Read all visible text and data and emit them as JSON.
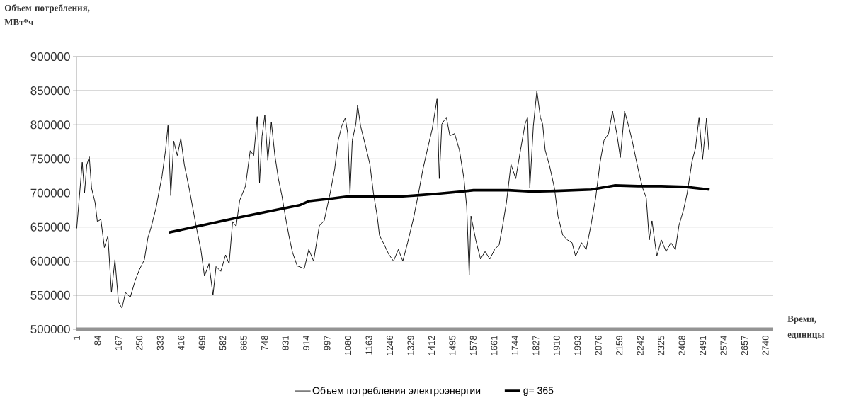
{
  "chart_data": {
    "type": "line",
    "ylabel": "Объем потребления, МВт*ч",
    "xlabel": "Время, единицы",
    "xlim": [
      0,
      2771
    ],
    "xticks": [
      1,
      84,
      167,
      250,
      333,
      416,
      499,
      582,
      665,
      748,
      831,
      914,
      997,
      1080,
      1163,
      1246,
      1329,
      1412,
      1495,
      1578,
      1661,
      1744,
      1827,
      1910,
      1993,
      2076,
      2159,
      2242,
      2325,
      2408,
      2491,
      2574,
      2657,
      2740
    ],
    "ylim": [
      500000,
      900000
    ],
    "yticks": [
      500000,
      550000,
      600000,
      650000,
      700000,
      750000,
      800000,
      850000,
      900000
    ],
    "grid": "y",
    "legend": "bottom",
    "marker": "none",
    "line_style": "solid",
    "series": [
      {
        "name": "Объем потребления электроэнергии",
        "color": "#000000",
        "x": [
          1,
          23,
          32,
          41,
          51,
          60,
          74,
          83,
          97,
          111,
          125,
          139,
          153,
          167,
          181,
          195,
          214,
          233,
          251,
          270,
          284,
          298,
          317,
          331,
          340,
          354,
          364,
          375,
          387,
          401,
          415,
          429,
          448,
          462,
          476,
          495,
          509,
          527,
          543,
          555,
          574,
          593,
          607,
          621,
          635,
          649,
          672,
          691,
          705,
          719,
          728,
          738,
          749,
          761,
          775,
          789,
          803,
          817,
          831,
          845,
          859,
          878,
          906,
          924,
          943,
          966,
          985,
          1009,
          1027,
          1041,
          1055,
          1069,
          1079,
          1088,
          1097,
          1111,
          1118,
          1130,
          1149,
          1167,
          1181,
          1196,
          1205,
          1224,
          1242,
          1261,
          1280,
          1298,
          1317,
          1340,
          1359,
          1378,
          1397,
          1415,
          1434,
          1443,
          1453,
          1471,
          1485,
          1504,
          1523,
          1541,
          1552,
          1562,
          1569,
          1588,
          1607,
          1625,
          1644,
          1663,
          1681,
          1695,
          1710,
          1728,
          1747,
          1766,
          1784,
          1794,
          1803,
          1817,
          1831,
          1845,
          1854,
          1864,
          1882,
          1901,
          1915,
          1934,
          1953,
          1971,
          1985,
          2009,
          2027,
          2046,
          2065,
          2083,
          2098,
          2116,
          2132,
          2149,
          2163,
          2180,
          2196,
          2210,
          2224,
          2238,
          2252,
          2266,
          2278,
          2289,
          2308,
          2326,
          2345,
          2364,
          2382,
          2396,
          2415,
          2429,
          2448,
          2462,
          2476,
          2490,
          2506,
          2515
        ],
        "values": [
          648000,
          745000,
          700000,
          741000,
          753000,
          707000,
          686000,
          658000,
          661000,
          620000,
          637000,
          554000,
          602000,
          540000,
          531000,
          554000,
          547000,
          571000,
          588000,
          602000,
          634000,
          651000,
          679000,
          707000,
          724000,
          762000,
          799000,
          696000,
          776000,
          755000,
          780000,
          741000,
          707000,
          679000,
          651000,
          616000,
          578000,
          596000,
          550000,
          592000,
          585000,
          609000,
          596000,
          658000,
          651000,
          689000,
          710000,
          762000,
          755000,
          812000,
          715000,
          783000,
          814000,
          748000,
          804000,
          755000,
          721000,
          696000,
          665000,
          637000,
          613000,
          593000,
          589000,
          617000,
          600000,
          652000,
          659000,
          700000,
          735000,
          777000,
          798000,
          810000,
          787000,
          699000,
          777000,
          801000,
          829000,
          798000,
          770000,
          742000,
          700000,
          666000,
          638000,
          624000,
          610000,
          600000,
          617000,
          600000,
          627000,
          662000,
          697000,
          735000,
          766000,
          794000,
          838000,
          721000,
          801000,
          811000,
          784000,
          787000,
          763000,
          721000,
          680000,
          579000,
          666000,
          631000,
          603000,
          614000,
          603000,
          617000,
          624000,
          652000,
          686000,
          742000,
          721000,
          763000,
          801000,
          811000,
          707000,
          798000,
          850000,
          811000,
          801000,
          763000,
          739000,
          707000,
          666000,
          638000,
          631000,
          627000,
          607000,
          627000,
          617000,
          652000,
          693000,
          746000,
          777000,
          787000,
          820000,
          787000,
          752000,
          820000,
          798000,
          777000,
          752000,
          728000,
          707000,
          693000,
          631000,
          659000,
          607000,
          631000,
          614000,
          627000,
          617000,
          652000,
          676000,
          700000,
          746000,
          766000,
          811000,
          749000,
          810000,
          763000
        ]
      },
      {
        "name": "g= 365",
        "color": "#000000",
        "x": [
          368,
          644,
          887,
          924,
          1018,
          1083,
          1205,
          1298,
          1373,
          1439,
          1532,
          1579,
          1719,
          1812,
          1906,
          2046,
          2140,
          2233,
          2326,
          2420,
          2518
        ],
        "values": [
          642000,
          664000,
          682000,
          688000,
          692000,
          695000,
          695000,
          695000,
          697000,
          699000,
          702000,
          704000,
          704000,
          702000,
          703000,
          705000,
          711000,
          710000,
          710000,
          709000,
          705000
        ]
      }
    ]
  }
}
